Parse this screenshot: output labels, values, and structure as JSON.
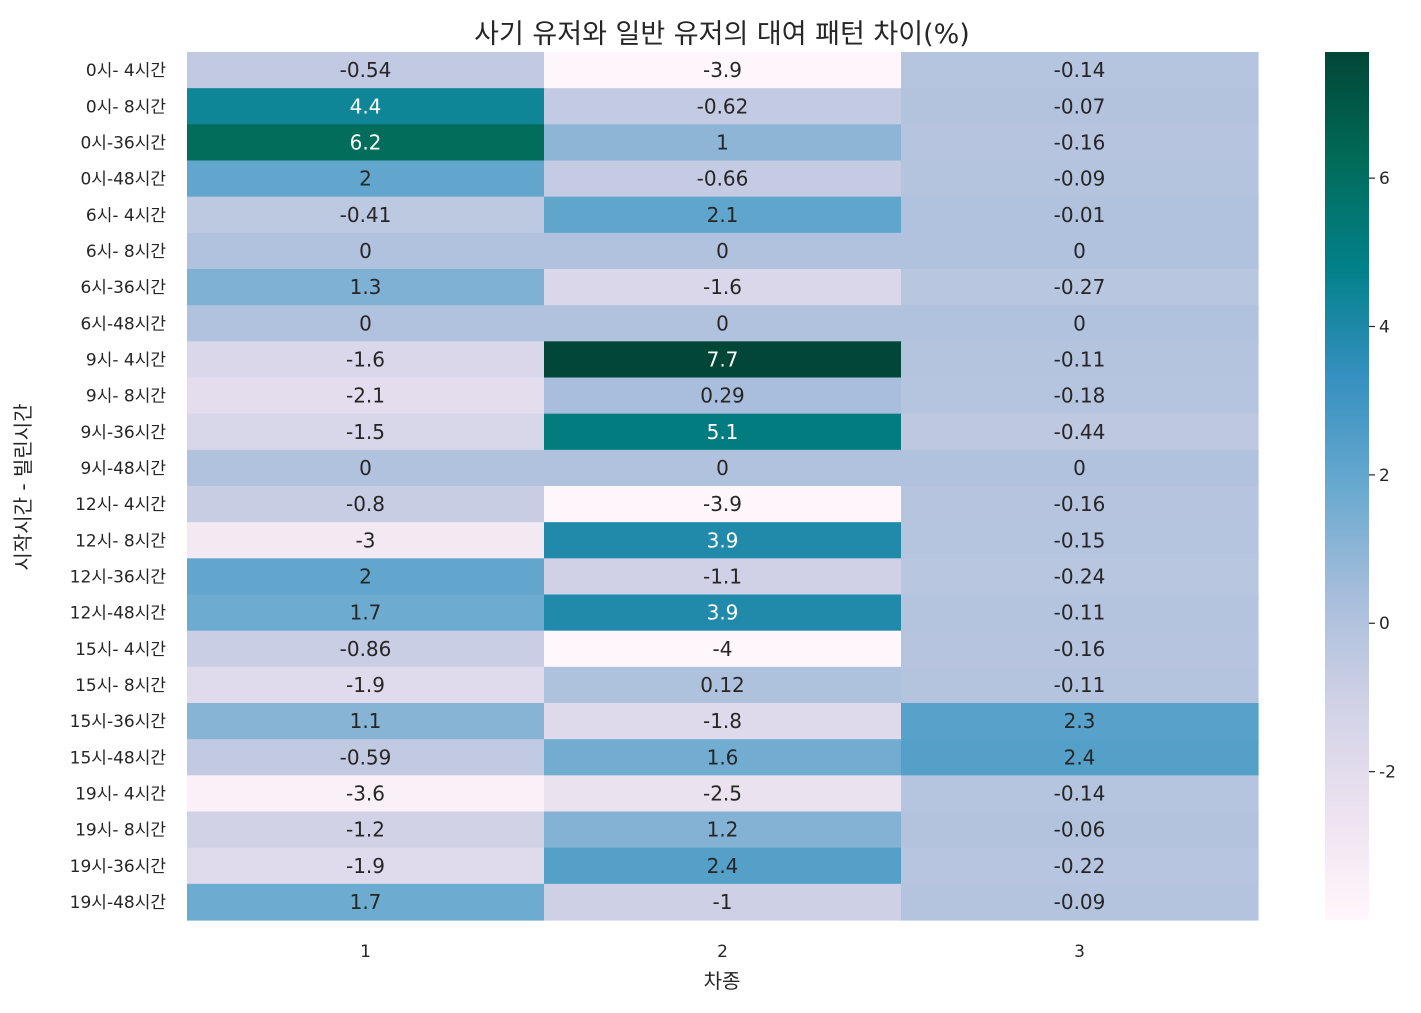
{
  "chart_data": {
    "type": "heatmap",
    "title": "사기 유저와 일반 유저의 대여 패턴 차이(%)",
    "xlabel": "차종",
    "ylabel": "시작시간 - 빌린시간",
    "columns": [
      "1",
      "2",
      "3"
    ],
    "rows": [
      "0시- 4시간",
      "0시- 8시간",
      "0시-36시간",
      "0시-48시간",
      "6시- 4시간",
      "6시- 8시간",
      "6시-36시간",
      "6시-48시간",
      "9시- 4시간",
      "9시- 8시간",
      "9시-36시간",
      "9시-48시간",
      "12시- 4시간",
      "12시- 8시간",
      "12시-36시간",
      "12시-48시간",
      "15시- 4시간",
      "15시- 8시간",
      "15시-36시간",
      "15시-48시간",
      "19시- 4시간",
      "19시- 8시간",
      "19시-36시간",
      "19시-48시간"
    ],
    "values": [
      [
        -0.54,
        -3.9,
        -0.14
      ],
      [
        4.4,
        -0.62,
        -0.07
      ],
      [
        6.2,
        1,
        -0.16
      ],
      [
        2,
        -0.66,
        -0.09
      ],
      [
        -0.41,
        2.1,
        -0.01
      ],
      [
        0,
        0,
        0
      ],
      [
        1.3,
        -1.6,
        -0.27
      ],
      [
        0,
        0,
        0
      ],
      [
        -1.6,
        7.7,
        -0.11
      ],
      [
        -2.1,
        0.29,
        -0.18
      ],
      [
        -1.5,
        5.1,
        -0.44
      ],
      [
        0,
        0,
        0
      ],
      [
        -0.8,
        -3.9,
        -0.16
      ],
      [
        -3,
        3.9,
        -0.15
      ],
      [
        2,
        -1.1,
        -0.24
      ],
      [
        1.7,
        3.9,
        -0.11
      ],
      [
        -0.86,
        -4,
        -0.16
      ],
      [
        -1.9,
        0.12,
        -0.11
      ],
      [
        1.1,
        -1.8,
        2.3
      ],
      [
        -0.59,
        1.6,
        2.4
      ],
      [
        -3.6,
        -2.5,
        -0.14
      ],
      [
        -1.2,
        1.2,
        -0.06
      ],
      [
        -1.9,
        2.4,
        -0.22
      ],
      [
        1.7,
        -1,
        -0.09
      ]
    ],
    "labels": [
      [
        "-0.54",
        "-3.9",
        "-0.14"
      ],
      [
        "4.4",
        "-0.62",
        "-0.07"
      ],
      [
        "6.2",
        "1",
        "-0.16"
      ],
      [
        "2",
        "-0.66",
        "-0.09"
      ],
      [
        "-0.41",
        "2.1",
        "-0.01"
      ],
      [
        "0",
        "0",
        "0"
      ],
      [
        "1.3",
        "-1.6",
        "-0.27"
      ],
      [
        "0",
        "0",
        "0"
      ],
      [
        "-1.6",
        "7.7",
        "-0.11"
      ],
      [
        "-2.1",
        "0.29",
        "-0.18"
      ],
      [
        "-1.5",
        "5.1",
        "-0.44"
      ],
      [
        "0",
        "0",
        "0"
      ],
      [
        "-0.8",
        "-3.9",
        "-0.16"
      ],
      [
        "-3",
        "3.9",
        "-0.15"
      ],
      [
        "2",
        "-1.1",
        "-0.24"
      ],
      [
        "1.7",
        "3.9",
        "-0.11"
      ],
      [
        "-0.86",
        "-4",
        "-0.16"
      ],
      [
        "-1.9",
        "0.12",
        "-0.11"
      ],
      [
        "1.1",
        "-1.8",
        "2.3"
      ],
      [
        "-0.59",
        "1.6",
        "2.4"
      ],
      [
        "-3.6",
        "-2.5",
        "-0.14"
      ],
      [
        "-1.2",
        "1.2",
        "-0.06"
      ],
      [
        "-1.9",
        "2.4",
        "-0.22"
      ],
      [
        "1.7",
        "-1",
        "-0.09"
      ]
    ],
    "colormap": "PuBuGn",
    "colormap_stops": [
      "#fff7fb",
      "#ece2f0",
      "#d0d1e6",
      "#a6bddb",
      "#67a9cf",
      "#3690c0",
      "#02818a",
      "#016c59",
      "#014636"
    ],
    "vmin": -4,
    "vmax": 7.7,
    "colorbar_ticks": [
      -2,
      0,
      2,
      4,
      6
    ],
    "colorbar_tick_labels": [
      "-2",
      "0",
      "2",
      "4",
      "6"
    ],
    "text_dark_color": "#262626",
    "text_light_color": "#ffffff",
    "grid": false
  }
}
